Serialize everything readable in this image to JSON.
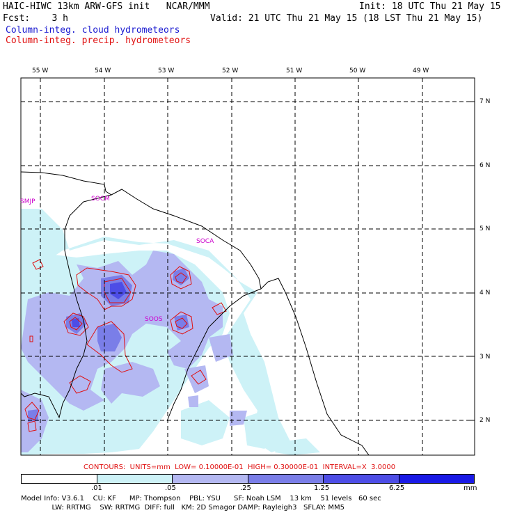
{
  "header": {
    "model_line": "HAIC-HIWC 13km ARW-GFS init   NCAR/MMM",
    "init_line": "Init: 18 UTC Thu 21 May 15",
    "fcst_line": "Fcst:    3 h",
    "valid_line": "Valid: 21 UTC Thu 21 May 15 (18 LST Thu 21 May 15)",
    "legend_cloud": "Column-integ. cloud hydrometeors",
    "legend_precip": "Column-integ. precip. hydrometeors"
  },
  "map": {
    "lon_labels": [
      "55 W",
      "54 W",
      "53 W",
      "52 W",
      "51 W",
      "50 W",
      "49 W"
    ],
    "lat_labels": [
      "7 N",
      "6 N",
      "5 N",
      "4 N",
      "3 N",
      "2 N"
    ],
    "stations": [
      "SMJP",
      "SOCM",
      "SOCA",
      "SOOS"
    ]
  },
  "contour_info": "CONTOURS:  UNITS=mm  LOW= 0.10000E-01  HIGH= 0.30000E-01  INTERVAL=X  3.0000",
  "colorbar": {
    "ticks": [
      ".01",
      ".05",
      ".25",
      "1.25",
      "6.25"
    ],
    "unit": "mm",
    "colors": [
      "#ffffff",
      "#cdf2f7",
      "#b4b8f2",
      "#7a7ee8",
      "#4d4de6",
      "#1a1ae6"
    ]
  },
  "footer": {
    "line1": "Model Info: V3.6.1    CU: KF      MP: Thompson    PBL: YSU      SF: Noah LSM    13 km    51 levels   60 sec",
    "line2": "              LW: RRTMG    SW: RRTMG  DIFF: full   KM: 2D Smagor DAMP: Rayleigh3   SFLAY: MM5"
  }
}
